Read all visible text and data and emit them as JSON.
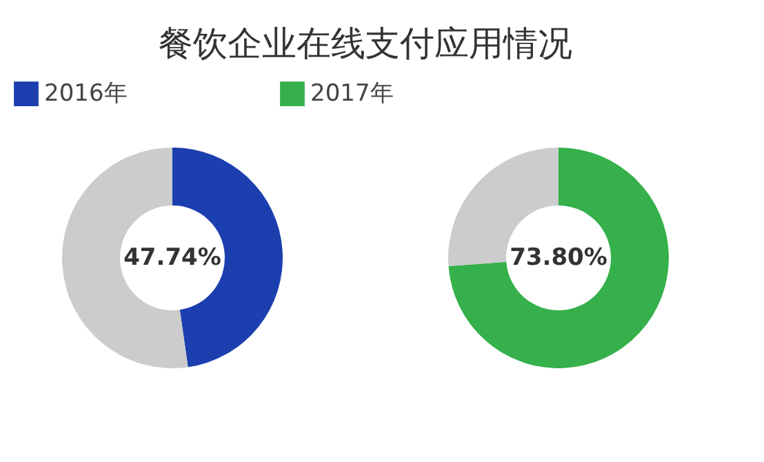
{
  "chart_data": [
    {
      "type": "donut",
      "title": "餐饮企业在线支付应用情况",
      "legend": "top",
      "categories": [
        "2016年",
        null
      ],
      "values": [
        47.74,
        52.26
      ],
      "colors": [
        "#1b3faf",
        "#cccccc"
      ],
      "annotations": [
        "47.74%"
      ]
    },
    {
      "type": "donut",
      "legend": "top",
      "categories": [
        "2017年",
        null
      ],
      "values": [
        73.8,
        26.2
      ],
      "colors": [
        "#35b04a",
        "#cccccc"
      ],
      "annotations": [
        "73.80%"
      ]
    }
  ]
}
